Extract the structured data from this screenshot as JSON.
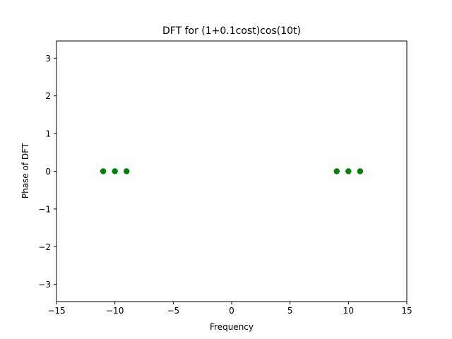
{
  "chart_data": {
    "type": "scatter",
    "title": "DFT for (1+0.1cost)cos(10t)",
    "xlabel": "Frequency",
    "ylabel": "Phase of DFT",
    "xlim": [
      -15,
      15
    ],
    "ylim": [
      -3.4557519,
      3.4557519
    ],
    "xticks": [
      -15,
      -10,
      -5,
      0,
      5,
      10,
      15
    ],
    "xtick_labels": [
      "−15",
      "−10",
      "−5",
      "0",
      "5",
      "10",
      "15"
    ],
    "yticks": [
      -3,
      -2,
      -1,
      0,
      1,
      2,
      3
    ],
    "ytick_labels": [
      "−3",
      "−2",
      "−1",
      "0",
      "1",
      "2",
      "3"
    ],
    "grid": false,
    "series": [
      {
        "marker_color": "#008000",
        "x": [
          -11,
          -10,
          -9,
          9,
          10,
          11
        ],
        "y": [
          0,
          0,
          0,
          0,
          0,
          0
        ]
      }
    ]
  }
}
